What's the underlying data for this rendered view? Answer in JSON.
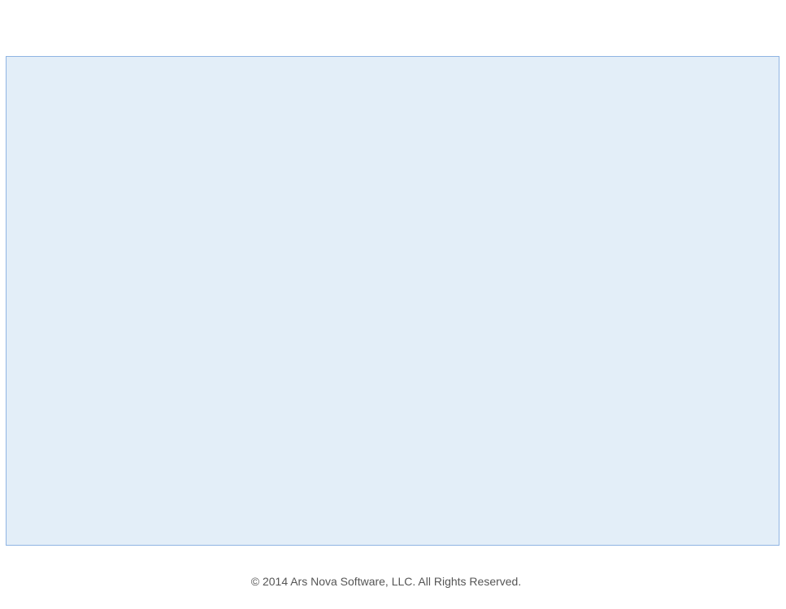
{
  "footer": {
    "copyright": "© 2014 Ars Nova Software, LLC. All Rights Reserved."
  },
  "colors": {
    "panel_background": "#e3eef8",
    "panel_border": "#8fb4e3",
    "footer_text": "#555555"
  }
}
